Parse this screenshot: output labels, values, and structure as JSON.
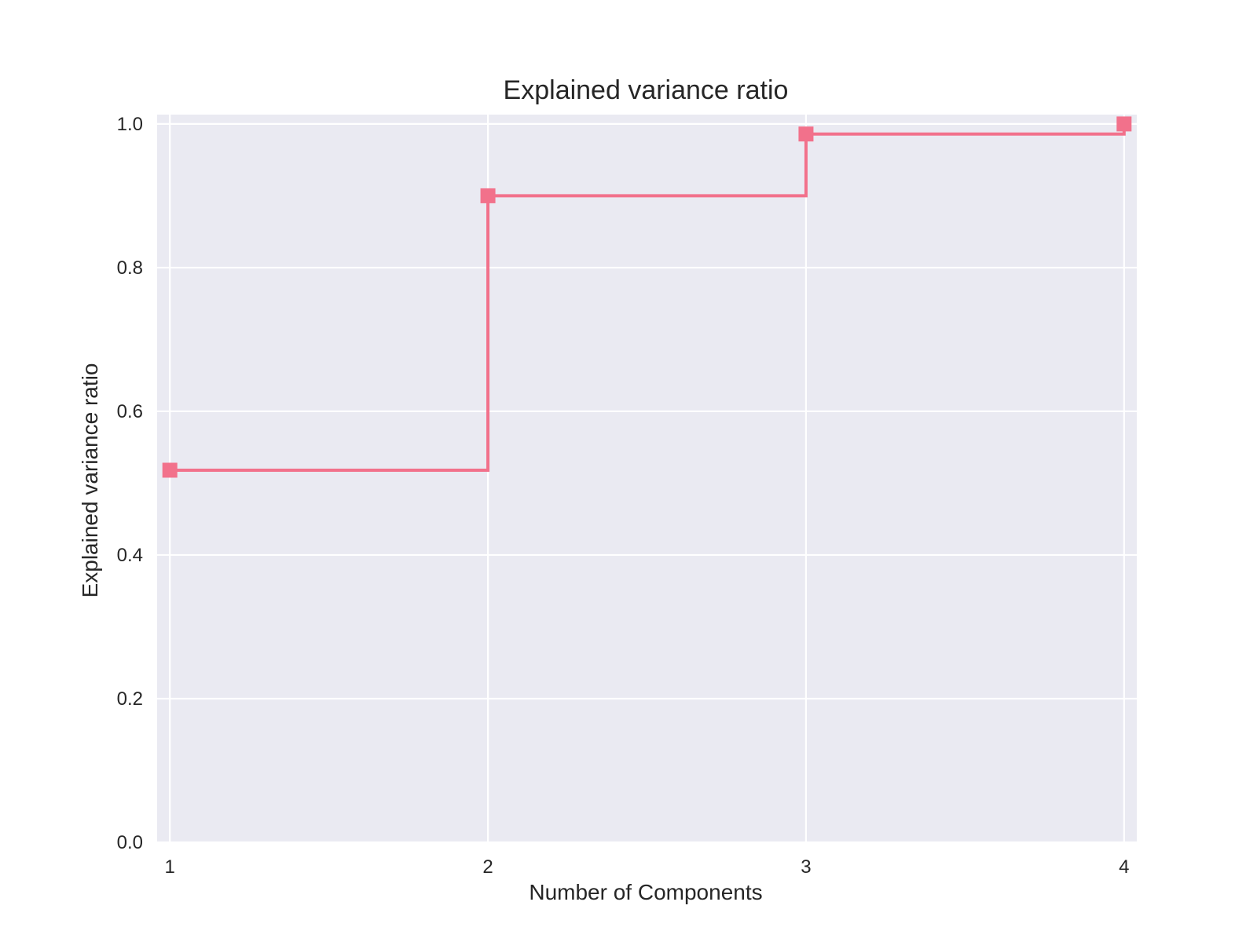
{
  "chart_data": {
    "type": "line",
    "title": "Explained variance ratio",
    "xlabel": "Number of Components",
    "ylabel": "Explained variance ratio",
    "x": [
      1,
      2,
      3,
      4
    ],
    "series": [
      {
        "values": [
          0.518,
          0.9,
          0.986,
          1.0
        ],
        "color": "#f2718b",
        "marker": "square",
        "drawstyle": "steps-post"
      }
    ],
    "xticks": [
      "1",
      "2",
      "3",
      "4"
    ],
    "yticks": [
      "0.0",
      "0.2",
      "0.4",
      "0.6",
      "0.8",
      "1.0"
    ],
    "xlim": [
      0.96,
      4.04
    ],
    "ylim": [
      0.0,
      1.013
    ],
    "grid": true,
    "background_color": "#eaeaf2",
    "grid_color": "#ffffff"
  }
}
